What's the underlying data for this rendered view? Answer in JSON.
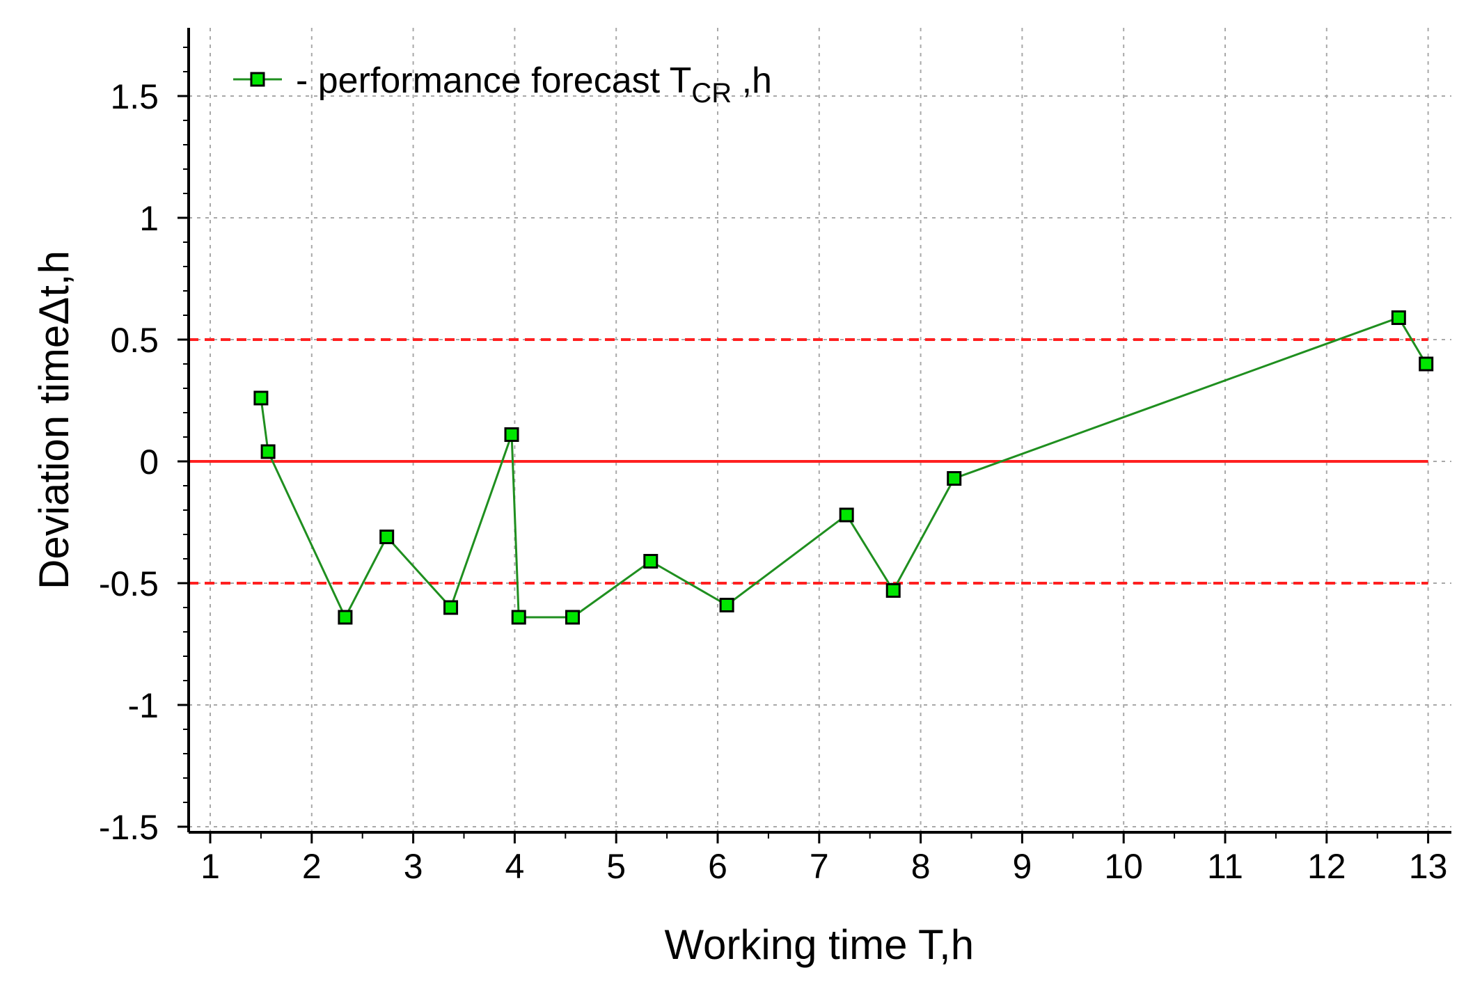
{
  "chart_data": {
    "type": "line",
    "xlabel": "Working time T,h",
    "ylabel": "Deviation timeΔt,h",
    "xlim": [
      1,
      13
    ],
    "ylim": [
      -1.5,
      1.7
    ],
    "x_ticks": [
      "1",
      "2",
      "3",
      "4",
      "5",
      "6",
      "7",
      "8",
      "9",
      "10",
      "11",
      "12",
      "13"
    ],
    "y_ticks": [
      "-1.5",
      "-1",
      "-0.5",
      "0",
      "0.5",
      "1",
      "1.5"
    ],
    "grid": true,
    "legend_position": "top-left",
    "series": [
      {
        "name": "- performance forecast T",
        "name_subscript": "CR",
        "name_suffix": " ,h",
        "color": "#1f8f1f",
        "marker_color": "#00e600",
        "marker": "square",
        "x": [
          1.5,
          1.57,
          2.33,
          2.74,
          3.37,
          3.97,
          4.04,
          4.57,
          5.34,
          6.09,
          7.27,
          7.73,
          8.33,
          12.71,
          12.98
        ],
        "y": [
          0.26,
          0.04,
          -0.64,
          -0.31,
          -0.6,
          0.11,
          -0.64,
          -0.64,
          -0.41,
          -0.59,
          -0.22,
          -0.53,
          -0.07,
          0.59,
          0.4
        ]
      }
    ],
    "reference_lines": [
      {
        "y": 0,
        "style": "solid",
        "color": "#ff2020"
      },
      {
        "y": 0.5,
        "style": "dashed",
        "color": "#ff2020"
      },
      {
        "y": -0.5,
        "style": "dashed",
        "color": "#ff2020"
      }
    ]
  }
}
